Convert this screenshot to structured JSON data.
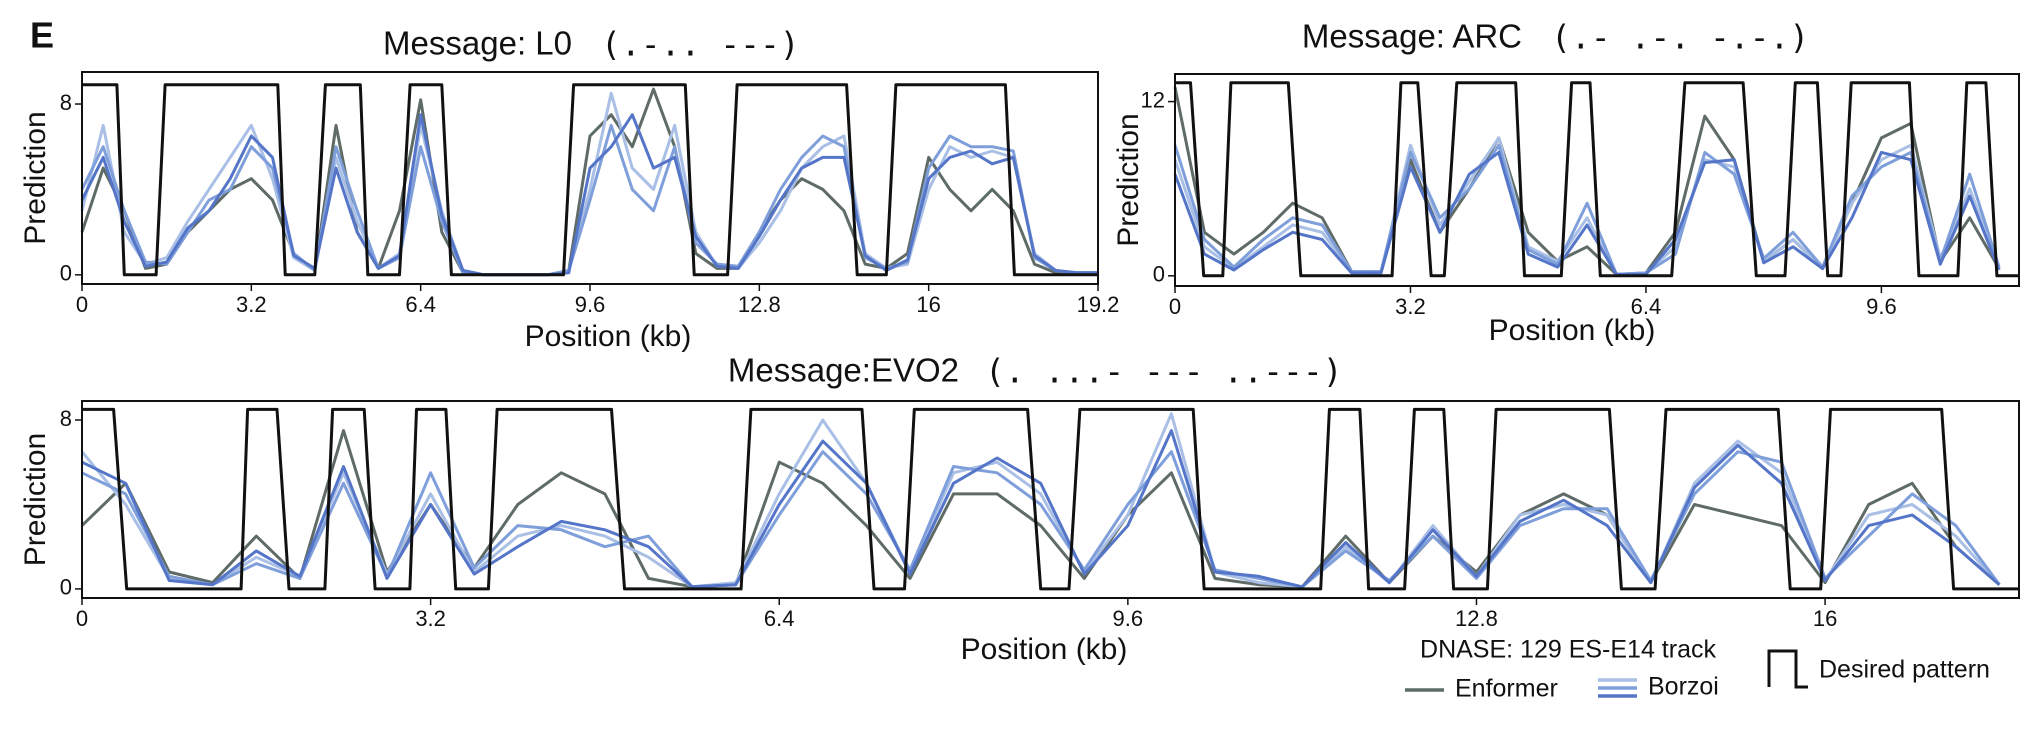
{
  "panel_label": "E",
  "chart_data": [
    {
      "type": "line",
      "title": "Message: L0",
      "morse": "(.-.. ---)",
      "xlabel": "Position (kb)",
      "ylabel": "Prediction",
      "xlim": [
        0,
        19.2
      ],
      "ylim": [
        -0.43,
        9.5
      ],
      "xticks": [
        0,
        3.2,
        6.4,
        9.6,
        12.8,
        16,
        19.2
      ],
      "yticks": [
        0,
        8
      ],
      "x": [
        0,
        0.4,
        0.8,
        1.2,
        1.6,
        2.0,
        2.4,
        2.8,
        3.2,
        3.6,
        4.0,
        4.4,
        4.8,
        5.2,
        5.6,
        6.0,
        6.4,
        6.8,
        7.2,
        7.6,
        8.0,
        8.4,
        8.8,
        9.2,
        9.6,
        10.0,
        10.4,
        10.8,
        11.2,
        11.6,
        12.0,
        12.4,
        12.8,
        13.2,
        13.6,
        14.0,
        14.4,
        14.8,
        15.2,
        15.6,
        16.0,
        16.4,
        16.8,
        17.2,
        17.6,
        18.0,
        18.4,
        18.8,
        19.2
      ],
      "series": [
        {
          "color": "#5f6b66",
          "values": [
            2,
            5,
            3,
            0.3,
            0.5,
            2,
            3,
            4,
            4.5,
            3.5,
            1,
            0.2,
            7,
            2,
            0.3,
            3,
            8.2,
            2,
            0.1,
            0,
            0,
            0,
            0,
            0.2,
            6.5,
            7.5,
            6,
            8.7,
            6,
            1,
            0.3,
            0.3,
            2,
            3.5,
            4.5,
            4,
            3,
            0.5,
            0.3,
            1,
            5.5,
            4,
            3,
            4,
            3,
            0.5,
            0.1,
            0.1,
            0.1
          ]
        },
        {
          "color": "#a9bfe6",
          "values": [
            3,
            7,
            2,
            0.5,
            0.8,
            2.5,
            4,
            5.5,
            7,
            4.5,
            0.8,
            0.2,
            5.5,
            2.5,
            0.3,
            1,
            7,
            3,
            0.2,
            0,
            0,
            0,
            0,
            0.2,
            4,
            8.5,
            5,
            4,
            7,
            2,
            0.4,
            0.3,
            1.5,
            3,
            5,
            6,
            6.5,
            1,
            0.3,
            0.5,
            4,
            6,
            5.5,
            5.8,
            5.5,
            1,
            0.2,
            0.1,
            0.1
          ]
        },
        {
          "color": "#7f9fdb",
          "values": [
            4,
            6,
            3,
            0.6,
            0.5,
            2,
            3.5,
            4,
            6,
            5,
            1,
            0.2,
            6,
            3,
            0.3,
            0.8,
            6,
            2.5,
            0.1,
            0,
            0,
            0,
            0,
            0.2,
            3.5,
            7,
            4,
            3,
            6,
            1.5,
            0.5,
            0.4,
            2,
            4,
            5.5,
            6.5,
            6,
            0.8,
            0.3,
            0.6,
            5,
            6.5,
            6,
            6,
            5.8,
            0.8,
            0.2,
            0.1,
            0.1
          ]
        },
        {
          "color": "#5576c8",
          "values": [
            3.5,
            5.5,
            2.5,
            0.4,
            0.6,
            2.2,
            3,
            4.5,
            6.5,
            5.5,
            0.9,
            0.3,
            5,
            2,
            0.3,
            0.9,
            7.5,
            2.8,
            0.2,
            0,
            0,
            0,
            0,
            0.1,
            5,
            6,
            7.5,
            5,
            5.5,
            1.8,
            0.4,
            0.3,
            1.8,
            3.5,
            5,
            5.5,
            5.5,
            0.9,
            0.2,
            0.7,
            4.5,
            5.5,
            5.8,
            5.2,
            5.5,
            0.9,
            0.2,
            0.1,
            0.1
          ]
        },
        {
          "color": "#111111",
          "x": [
            0,
            0.66,
            0.8,
            1.4,
            1.57,
            3.7,
            3.84,
            4.4,
            4.6,
            5.26,
            5.4,
            6.0,
            6.2,
            6.8,
            6.98,
            9.1,
            9.29,
            11.4,
            11.57,
            12.2,
            12.38,
            14.45,
            14.65,
            15.2,
            15.38,
            17.45,
            17.62,
            19.2
          ],
          "values": [
            8.9,
            8.9,
            0,
            0,
            8.9,
            8.9,
            0,
            0,
            8.9,
            8.9,
            0,
            0,
            8.9,
            8.9,
            0,
            0,
            8.9,
            8.9,
            0,
            0,
            8.9,
            8.9,
            0,
            0,
            8.9,
            8.9,
            0,
            0
          ]
        }
      ]
    },
    {
      "type": "line",
      "title": "Message: ARC",
      "morse": "(.- .-. -.-.)",
      "xlabel": "Position (kb)",
      "ylabel": "Prediction",
      "xlim": [
        0,
        11.47
      ],
      "ylim": [
        -0.7,
        13.9
      ],
      "xticks": [
        0,
        3.2,
        6.4,
        9.6
      ],
      "yticks": [
        0,
        12
      ],
      "x": [
        0,
        0.4,
        0.8,
        1.2,
        1.6,
        2.0,
        2.4,
        2.8,
        3.2,
        3.6,
        4.0,
        4.4,
        4.8,
        5.2,
        5.6,
        6.0,
        6.4,
        6.8,
        7.2,
        7.6,
        8.0,
        8.4,
        8.8,
        9.2,
        9.6,
        10.0,
        10.4,
        10.8,
        11.2
      ],
      "series": [
        {
          "color": "#5f6b66",
          "values": [
            13,
            3,
            1.5,
            3,
            5,
            4,
            0.3,
            0.2,
            8,
            3,
            6,
            9.5,
            3,
            1,
            2,
            0.1,
            0.2,
            3,
            11,
            8,
            1,
            2.5,
            0.5,
            5,
            9.5,
            10.5,
            1,
            4,
            0.5
          ]
        },
        {
          "color": "#a9bfe6",
          "values": [
            8,
            2,
            0.5,
            2,
            3.5,
            3,
            0.3,
            0.2,
            9,
            3.5,
            6.5,
            9.5,
            2,
            1,
            4,
            0.1,
            0.2,
            2,
            8,
            7.5,
            1,
            2.5,
            0.5,
            5,
            8,
            9,
            1.2,
            6,
            0.5
          ]
        },
        {
          "color": "#7f9fdb",
          "values": [
            9,
            2.5,
            0.6,
            2.5,
            4,
            3.5,
            0.3,
            0.3,
            8.5,
            4,
            6,
            9,
            1.8,
            0.8,
            5,
            0.1,
            0.2,
            1.5,
            8.5,
            7,
            1.2,
            3,
            0.6,
            5.5,
            7.5,
            8.5,
            1,
            7,
            0.6
          ]
        },
        {
          "color": "#5576c8",
          "values": [
            7,
            1.5,
            0.4,
            1.8,
            3,
            2.5,
            0.2,
            0.2,
            7.5,
            3,
            7,
            8.5,
            1.5,
            0.6,
            3.5,
            0.1,
            0.1,
            2.5,
            7.8,
            8,
            0.9,
            2,
            0.5,
            4,
            8.5,
            8,
            0.8,
            5.5,
            0.4
          ]
        },
        {
          "color": "#111111",
          "x": [
            0,
            0.21,
            0.39,
            0.65,
            0.76,
            1.54,
            1.71,
            2.95,
            3.07,
            3.3,
            3.48,
            3.66,
            3.83,
            4.63,
            4.75,
            5.25,
            5.39,
            5.64,
            5.78,
            6.75,
            6.93,
            7.72,
            7.9,
            8.29,
            8.43,
            8.73,
            8.87,
            9.05,
            9.19,
            9.98,
            10.11,
            10.64,
            10.76,
            11.02,
            11.17,
            11.47
          ],
          "values": [
            13.3,
            13.3,
            0,
            0,
            13.3,
            13.3,
            0,
            0,
            13.3,
            13.3,
            0,
            0,
            13.3,
            13.3,
            0,
            0,
            13.3,
            13.3,
            0,
            0,
            13.3,
            13.3,
            0,
            0,
            13.3,
            13.3,
            0,
            0,
            13.3,
            13.3,
            0,
            0,
            13.3,
            13.3,
            0,
            0
          ]
        }
      ]
    },
    {
      "type": "line",
      "title": "Message:EVO2",
      "morse": "(. ...- --- ..---)",
      "xlabel": "Position (kb)",
      "ylabel": "Prediction",
      "xlim": [
        0,
        17.78
      ],
      "ylim": [
        -0.43,
        8.9
      ],
      "xticks": [
        0,
        3.2,
        6.4,
        9.6,
        12.8,
        16
      ],
      "yticks": [
        0,
        8
      ],
      "legend_title": "DNASE: 129 ES-E14 track",
      "x": [
        0,
        0.4,
        0.8,
        1.2,
        1.6,
        2.0,
        2.4,
        2.8,
        3.2,
        3.6,
        4.0,
        4.4,
        4.8,
        5.2,
        5.6,
        6.0,
        6.4,
        6.8,
        7.2,
        7.6,
        8.0,
        8.4,
        8.8,
        9.2,
        9.6,
        10.0,
        10.4,
        10.8,
        11.2,
        11.6,
        12.0,
        12.4,
        12.8,
        13.2,
        13.6,
        14.0,
        14.4,
        14.8,
        15.2,
        15.6,
        16.0,
        16.4,
        16.8,
        17.2,
        17.6
      ],
      "series": [
        {
          "name": "Enformer",
          "color": "#5f6b66",
          "values": [
            3,
            5,
            0.8,
            0.3,
            2.5,
            0.5,
            7.5,
            0.8,
            4,
            1,
            4,
            5.5,
            4.5,
            0.5,
            0.1,
            0.2,
            6,
            5,
            3,
            0.5,
            4.5,
            4.5,
            3,
            0.5,
            3.5,
            5.5,
            0.5,
            0.2,
            0.1,
            2.5,
            0.3,
            2.5,
            0.8,
            3.5,
            4.5,
            3.5,
            0.3,
            4,
            3.5,
            3,
            0.3,
            4,
            5,
            2,
            0.2
          ]
        },
        {
          "name": "Borzoi",
          "color": "#a9bfe6",
          "values": [
            6.5,
            4,
            0.5,
            0.2,
            1.5,
            0.6,
            5.5,
            0.7,
            4.5,
            0.8,
            2.5,
            3,
            2.5,
            1.5,
            0.1,
            0.3,
            4.5,
            8,
            5,
            0.8,
            5.5,
            6,
            4.5,
            0.8,
            3.5,
            8.3,
            0.8,
            0.3,
            0.1,
            2,
            0.3,
            3,
            0.6,
            3.5,
            4,
            3.5,
            0.3,
            5,
            7,
            5.5,
            0.4,
            3.5,
            4,
            2.5,
            0.2
          ]
        },
        {
          "color": "#7f9fdb",
          "values": [
            5.5,
            4.5,
            0.6,
            0.2,
            1.2,
            0.5,
            5,
            0.6,
            5.5,
            1,
            3,
            2.8,
            2,
            2.5,
            0.1,
            0.2,
            3.5,
            6.5,
            4.5,
            0.9,
            5.8,
            5.5,
            4,
            0.9,
            4,
            6.5,
            0.9,
            0.5,
            0.1,
            1.8,
            0.4,
            2.5,
            0.5,
            3,
            3.8,
            3.8,
            0.4,
            4.5,
            6.5,
            6,
            0.5,
            2.5,
            4.5,
            3,
            0.2
          ]
        },
        {
          "color": "#5576c8",
          "values": [
            6,
            5,
            0.4,
            0.2,
            1.8,
            0.6,
            5.8,
            0.5,
            4,
            0.7,
            2,
            3.2,
            2.8,
            2,
            0.1,
            0.2,
            4,
            7,
            5,
            0.7,
            5,
            6.2,
            5,
            0.7,
            3,
            7.5,
            0.8,
            0.6,
            0.1,
            2.2,
            0.3,
            2.8,
            0.6,
            3.2,
            4.2,
            3,
            0.3,
            4.8,
            6.8,
            5,
            0.4,
            3,
            3.5,
            2,
            0.2
          ]
        },
        {
          "name": "Desired pattern",
          "color": "#111111",
          "x": [
            0,
            0.29,
            0.41,
            1.46,
            1.52,
            1.79,
            1.9,
            2.23,
            2.3,
            2.59,
            2.69,
            3.01,
            3.07,
            3.34,
            3.43,
            3.73,
            3.81,
            4.86,
            4.98,
            6.05,
            6.14,
            7.16,
            7.27,
            7.55,
            7.64,
            8.68,
            8.8,
            9.06,
            9.16,
            10.2,
            10.3,
            11.37,
            11.45,
            11.73,
            11.81,
            12.14,
            12.23,
            12.5,
            12.59,
            12.9,
            12.98,
            14.02,
            14.13,
            14.44,
            14.54,
            15.57,
            15.68,
            15.96,
            16.05,
            17.07,
            17.18,
            17.78
          ],
          "values": [
            8.5,
            8.5,
            0,
            0,
            8.5,
            8.5,
            0,
            0,
            8.5,
            8.5,
            0,
            0,
            8.5,
            8.5,
            0,
            0,
            8.5,
            8.5,
            0,
            0,
            8.5,
            8.5,
            0,
            0,
            8.5,
            8.5,
            0,
            0,
            8.5,
            8.5,
            0,
            0,
            8.5,
            8.5,
            0,
            0,
            8.5,
            8.5,
            0,
            0,
            8.5,
            8.5,
            0,
            0,
            8.5,
            8.5,
            0,
            0,
            8.5,
            8.5,
            0,
            0
          ]
        }
      ]
    }
  ]
}
